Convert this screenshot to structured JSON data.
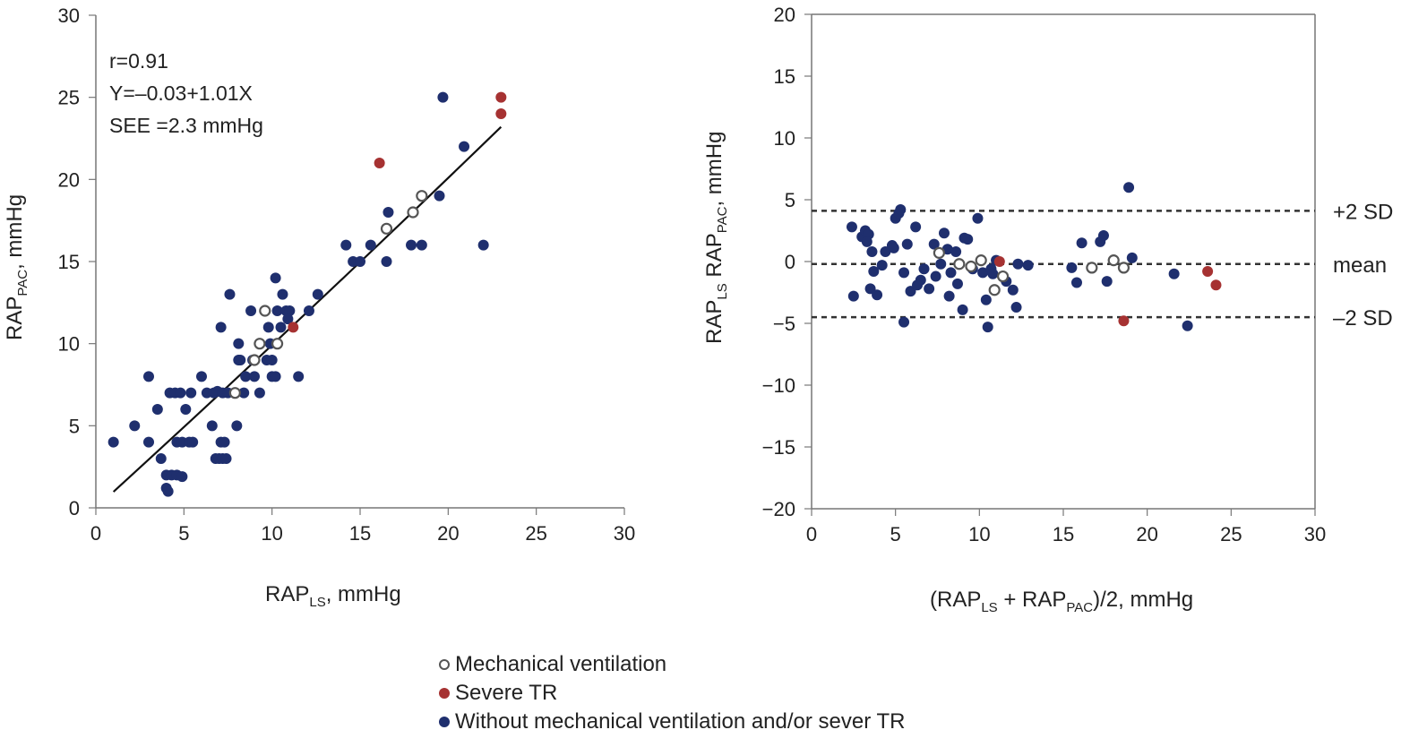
{
  "chart_data": [
    {
      "type": "scatter",
      "annotations": [
        "r=0.91",
        "Y=–0.03+1.01X",
        "SEE =2.3 mmHg"
      ],
      "xlabel": {
        "main": "RAP",
        "sub": "LS",
        "tail": ", mmHg"
      },
      "ylabel": {
        "main": "RAP",
        "sub": "PAC",
        "tail": ", mmHg"
      },
      "xlim": [
        0,
        30
      ],
      "ylim": [
        0,
        30
      ],
      "xticks": [
        0,
        5,
        10,
        15,
        20,
        25,
        30
      ],
      "yticks": [
        0,
        5,
        10,
        15,
        20,
        25,
        30
      ],
      "regression": {
        "intercept": -0.03,
        "slope": 1.01,
        "x_range": [
          1,
          23
        ]
      },
      "series": [
        {
          "group": "mechanical_ventilation",
          "points": [
            [
              7.9,
              7
            ],
            [
              9,
              9
            ],
            [
              9.3,
              10
            ],
            [
              9.6,
              12
            ],
            [
              10.3,
              10
            ],
            [
              16.5,
              17
            ],
            [
              18,
              18
            ],
            [
              18.5,
              19
            ]
          ]
        },
        {
          "group": "severe_tr",
          "points": [
            [
              11.2,
              11
            ],
            [
              16.1,
              21
            ],
            [
              23,
              25
            ],
            [
              23,
              24
            ]
          ]
        },
        {
          "group": "without",
          "points": [
            [
              1,
              4
            ],
            [
              2.2,
              5
            ],
            [
              3,
              4
            ],
            [
              3,
              8
            ],
            [
              3.5,
              6
            ],
            [
              3.7,
              3
            ],
            [
              4,
              1.2
            ],
            [
              4.1,
              1
            ],
            [
              4,
              2
            ],
            [
              4.3,
              2
            ],
            [
              4.6,
              2
            ],
            [
              4.9,
              1.9
            ],
            [
              4.2,
              7
            ],
            [
              4.5,
              7
            ],
            [
              4.8,
              7
            ],
            [
              4.6,
              4
            ],
            [
              4.9,
              4
            ],
            [
              5.3,
              4
            ],
            [
              5.5,
              4
            ],
            [
              5.1,
              6
            ],
            [
              5.4,
              7
            ],
            [
              6,
              8
            ],
            [
              6.3,
              7
            ],
            [
              6.6,
              5
            ],
            [
              6.7,
              7
            ],
            [
              6.8,
              3
            ],
            [
              7,
              3
            ],
            [
              7.2,
              3
            ],
            [
              7.4,
              3
            ],
            [
              7.1,
              4
            ],
            [
              7.3,
              4
            ],
            [
              6.9,
              7.1
            ],
            [
              7.1,
              11
            ],
            [
              7.6,
              13
            ],
            [
              7.2,
              7
            ],
            [
              7.5,
              7
            ],
            [
              8,
              5
            ],
            [
              8.1,
              9
            ],
            [
              8.1,
              10
            ],
            [
              8.2,
              9
            ],
            [
              8.4,
              7
            ],
            [
              8.5,
              8
            ],
            [
              8.8,
              12
            ],
            [
              8.9,
              9
            ],
            [
              9,
              8
            ],
            [
              9.3,
              7
            ],
            [
              9.7,
              9
            ],
            [
              9.9,
              10
            ],
            [
              9.8,
              11
            ],
            [
              10,
              8
            ],
            [
              10,
              9
            ],
            [
              10.2,
              8
            ],
            [
              10.3,
              12
            ],
            [
              10.5,
              11
            ],
            [
              10.6,
              13
            ],
            [
              10.8,
              12
            ],
            [
              11,
              12
            ],
            [
              10.9,
              11.5
            ],
            [
              11.5,
              8
            ],
            [
              12.1,
              12
            ],
            [
              12.6,
              13
            ],
            [
              14.2,
              16
            ],
            [
              14.6,
              15
            ],
            [
              15,
              15
            ],
            [
              15.6,
              16
            ],
            [
              16.5,
              15
            ],
            [
              16.6,
              18
            ],
            [
              17.9,
              16
            ],
            [
              18.5,
              16
            ],
            [
              19.5,
              19
            ],
            [
              19.7,
              25
            ],
            [
              20.9,
              22
            ],
            [
              22,
              16
            ],
            [
              10.2,
              14
            ]
          ]
        }
      ]
    },
    {
      "type": "scatter",
      "xlabel": {
        "pre": "(RAP",
        "sub1": "LS",
        "mid": " + RAP",
        "sub2": "PAC",
        "tail": ")/2, mmHg"
      },
      "ylabel": {
        "p1": "RAP",
        "s1": "LS",
        "p2": " RAP",
        "s2": "PAC",
        "tail": ", mmHg"
      },
      "xlim": [
        0,
        30
      ],
      "ylim": [
        -20,
        20
      ],
      "xticks": [
        0,
        5,
        10,
        15,
        20,
        25,
        30
      ],
      "yticks": [
        -20,
        -15,
        -10,
        -5,
        0,
        5,
        10,
        15,
        20
      ],
      "reference_lines": [
        {
          "value": 4.1,
          "label": "+2 SD"
        },
        {
          "value": -0.2,
          "label": "mean"
        },
        {
          "value": -4.5,
          "label": "–2 SD"
        }
      ],
      "series": [
        {
          "group": "mechanical_ventilation",
          "points": [
            [
              7.6,
              0.7
            ],
            [
              8.8,
              -0.2
            ],
            [
              9.5,
              -0.4
            ],
            [
              10.1,
              0.1
            ],
            [
              10.9,
              -2.3
            ],
            [
              11.4,
              -1.2
            ],
            [
              16.7,
              -0.5
            ],
            [
              18,
              0.1
            ],
            [
              18.6,
              -0.5
            ]
          ]
        },
        {
          "group": "severe_tr",
          "points": [
            [
              11.2,
              0
            ],
            [
              18.6,
              -4.8
            ],
            [
              23.6,
              -0.8
            ],
            [
              24.1,
              -1.9
            ]
          ]
        },
        {
          "group": "without",
          "points": [
            [
              2.4,
              2.8
            ],
            [
              2.5,
              -2.8
            ],
            [
              3,
              2
            ],
            [
              3.2,
              2.5
            ],
            [
              3.4,
              2.2
            ],
            [
              3.5,
              -2.2
            ],
            [
              3.6,
              0.8
            ],
            [
              3.7,
              -0.8
            ],
            [
              3.9,
              -2.7
            ],
            [
              4.4,
              0.8
            ],
            [
              4.8,
              1.3
            ],
            [
              5,
              3.5
            ],
            [
              5.2,
              3.9
            ],
            [
              5.3,
              4.2
            ],
            [
              5.5,
              -0.9
            ],
            [
              5.5,
              -4.9
            ],
            [
              5.7,
              1.4
            ],
            [
              5.9,
              -2.4
            ],
            [
              6.2,
              2.8
            ],
            [
              6.5,
              -1.5
            ],
            [
              6.7,
              -0.6
            ],
            [
              7,
              -2.2
            ],
            [
              7.3,
              1.4
            ],
            [
              7.7,
              -0.2
            ],
            [
              7.9,
              2.3
            ],
            [
              8.1,
              1
            ],
            [
              8.3,
              -0.9
            ],
            [
              8.6,
              0.8
            ],
            [
              8.7,
              -1.8
            ],
            [
              9,
              -3.9
            ],
            [
              9.3,
              1.8
            ],
            [
              9.6,
              -0.6
            ],
            [
              9.9,
              3.5
            ],
            [
              10.2,
              -0.9
            ],
            [
              10.4,
              -3.1
            ],
            [
              10.5,
              -5.3
            ],
            [
              10.7,
              -0.6
            ],
            [
              11,
              0.1
            ],
            [
              11.6,
              -1.6
            ],
            [
              12,
              -2.3
            ],
            [
              12.2,
              -3.7
            ],
            [
              12.3,
              -0.2
            ],
            [
              12.9,
              -0.3
            ],
            [
              15.5,
              -0.5
            ],
            [
              15.8,
              -1.7
            ],
            [
              16.1,
              1.5
            ],
            [
              17.2,
              1.6
            ],
            [
              17.4,
              2.1
            ],
            [
              17.6,
              -1.6
            ],
            [
              19.1,
              0.3
            ],
            [
              18.9,
              6
            ],
            [
              21.6,
              -1
            ],
            [
              22.4,
              -5.2
            ],
            [
              4.9,
              1.1
            ],
            [
              6.3,
              -1.9
            ],
            [
              7.4,
              -1.2
            ],
            [
              8.2,
              -2.8
            ],
            [
              9.1,
              1.9
            ],
            [
              10.8,
              -1
            ],
            [
              3.3,
              1.6
            ],
            [
              4.2,
              -0.3
            ]
          ]
        }
      ]
    }
  ],
  "legend": {
    "entries": [
      {
        "group": "mechanical_ventilation",
        "label": "Mechanical ventilation"
      },
      {
        "group": "severe_tr",
        "label": "Severe TR"
      },
      {
        "group": "without",
        "label": "Without mechanical ventilation and/or sever TR"
      }
    ]
  },
  "colors": {
    "mechanical_ventilation_fill": "#ffffff",
    "mechanical_ventilation_stroke": "#555555",
    "severe_tr": "#a63232",
    "without": "#1f2f6e",
    "axis": "#777777",
    "text": "#222222"
  }
}
